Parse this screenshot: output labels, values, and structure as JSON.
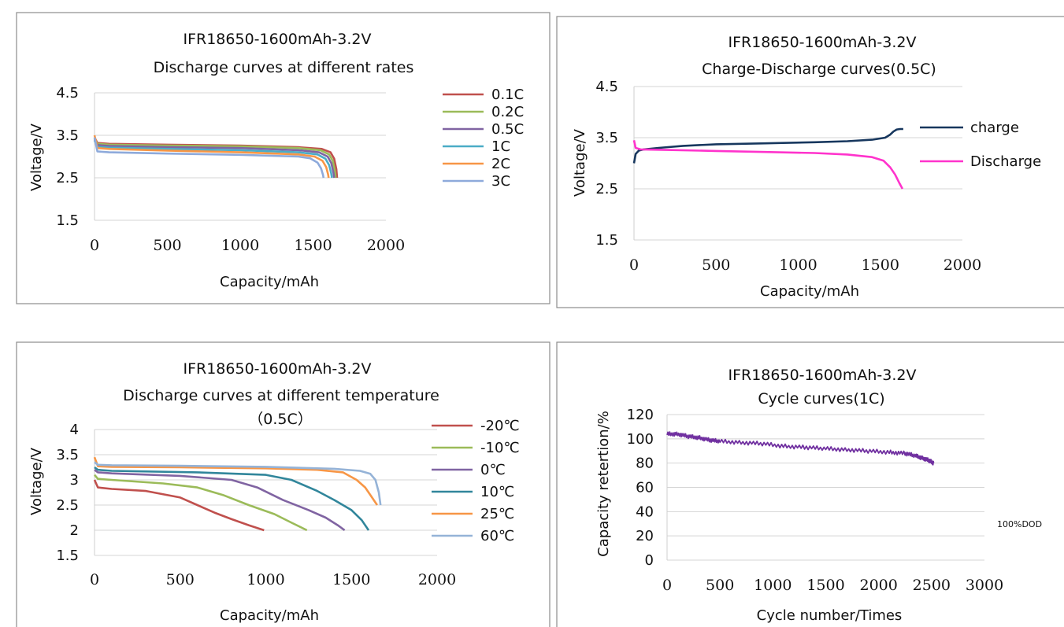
{
  "chart_data": [
    {
      "type": "line",
      "title": "IFR18650-1600mAh-3.2V",
      "subtitle": "Discharge curves at different rates",
      "xlabel": "Capacity/mAh",
      "ylabel": "Voltage/V",
      "xlim": [
        0,
        2000
      ],
      "ylim": [
        1.5,
        4.5
      ],
      "xticks": [
        "0",
        "500",
        "1000",
        "1500",
        "2000"
      ],
      "yticks": [
        "4.5",
        "3.5",
        "2.5",
        "1.5"
      ],
      "grid": true,
      "legend_position": "right",
      "series": [
        {
          "name": "0.1C",
          "color": "#c0504d",
          "x": [
            0,
            20,
            100,
            500,
            1000,
            1400,
            1560,
            1620,
            1645,
            1660,
            1665
          ],
          "y": [
            3.45,
            3.32,
            3.3,
            3.28,
            3.26,
            3.22,
            3.18,
            3.1,
            2.95,
            2.7,
            2.5
          ]
        },
        {
          "name": "0.2C",
          "color": "#9bbb59",
          "x": [
            0,
            20,
            100,
            500,
            1000,
            1400,
            1550,
            1610,
            1635,
            1650,
            1655
          ],
          "y": [
            3.42,
            3.3,
            3.28,
            3.26,
            3.24,
            3.2,
            3.15,
            3.05,
            2.9,
            2.65,
            2.5
          ]
        },
        {
          "name": "0.5C",
          "color": "#8064a2",
          "x": [
            0,
            20,
            100,
            500,
            1000,
            1400,
            1540,
            1600,
            1625,
            1640,
            1645
          ],
          "y": [
            3.4,
            3.27,
            3.25,
            3.22,
            3.2,
            3.15,
            3.1,
            3.0,
            2.85,
            2.62,
            2.5
          ]
        },
        {
          "name": "1C",
          "color": "#4bacc6",
          "x": [
            0,
            20,
            100,
            500,
            1000,
            1400,
            1530,
            1585,
            1610,
            1625,
            1630
          ],
          "y": [
            3.38,
            3.23,
            3.21,
            3.18,
            3.15,
            3.1,
            3.05,
            2.95,
            2.8,
            2.6,
            2.5
          ]
        },
        {
          "name": "2C",
          "color": "#f79646",
          "x": [
            0,
            20,
            100,
            500,
            1000,
            1400,
            1510,
            1565,
            1590,
            1603,
            1607
          ],
          "y": [
            3.5,
            3.2,
            3.18,
            3.14,
            3.1,
            3.05,
            3.0,
            2.9,
            2.75,
            2.58,
            2.5
          ]
        },
        {
          "name": "3C",
          "color": "#8eaadb",
          "x": [
            0,
            20,
            100,
            500,
            1000,
            1400,
            1480,
            1530,
            1555,
            1568,
            1572
          ],
          "y": [
            3.45,
            3.12,
            3.1,
            3.07,
            3.04,
            3.0,
            2.96,
            2.86,
            2.72,
            2.57,
            2.5
          ]
        }
      ]
    },
    {
      "type": "line",
      "title": "IFR18650-1600mAh-3.2V",
      "subtitle": "Charge-Discharge curves(0.5C)",
      "xlabel": "Capacity/mAh",
      "ylabel": "Voltage/V",
      "xlim": [
        0,
        2000
      ],
      "ylim": [
        1.5,
        4.5
      ],
      "xticks": [
        "0",
        "500",
        "1000",
        "1500",
        "2000"
      ],
      "yticks": [
        "4.5",
        "3.5",
        "2.5",
        "1.5"
      ],
      "grid": true,
      "legend_position": "right",
      "series": [
        {
          "name": "charge",
          "color": "#17375e",
          "x": [
            0,
            10,
            30,
            60,
            150,
            300,
            500,
            800,
            1100,
            1300,
            1450,
            1530,
            1560,
            1580,
            1600,
            1620,
            1640
          ],
          "y": [
            3.0,
            3.18,
            3.25,
            3.27,
            3.3,
            3.34,
            3.37,
            3.39,
            3.41,
            3.43,
            3.46,
            3.5,
            3.56,
            3.62,
            3.66,
            3.67,
            3.67
          ]
        },
        {
          "name": "Discharge",
          "color": "#ff33cc",
          "x": [
            0,
            10,
            40,
            200,
            500,
            800,
            1100,
            1300,
            1450,
            1520,
            1560,
            1590,
            1615,
            1635
          ],
          "y": [
            3.45,
            3.3,
            3.27,
            3.26,
            3.24,
            3.22,
            3.2,
            3.17,
            3.12,
            3.05,
            2.92,
            2.78,
            2.62,
            2.5
          ]
        }
      ]
    },
    {
      "type": "line",
      "title": "IFR18650-1600mAh-3.2V",
      "subtitle": "Discharge curves at different temperature",
      "subtitle2": "（0.5C）",
      "xlabel": "Capacity/mAh",
      "ylabel": "Voltage/V",
      "xlim": [
        0,
        2000
      ],
      "ylim": [
        1.5,
        4
      ],
      "xticks": [
        "0",
        "500",
        "1000",
        "1500",
        "2000"
      ],
      "yticks": [
        "4",
        "3.5",
        "3",
        "2.5",
        "2",
        "1.5"
      ],
      "grid": true,
      "legend_position": "right",
      "series": [
        {
          "name": "-20℃",
          "color": "#c0504d",
          "x": [
            0,
            20,
            100,
            300,
            500,
            600,
            700,
            800,
            900,
            990
          ],
          "y": [
            3.0,
            2.85,
            2.82,
            2.78,
            2.65,
            2.5,
            2.35,
            2.22,
            2.1,
            2.0
          ]
        },
        {
          "name": "-10℃",
          "color": "#9bbb59",
          "x": [
            0,
            20,
            100,
            400,
            600,
            750,
            900,
            1050,
            1150,
            1240
          ],
          "y": [
            3.1,
            3.02,
            3.0,
            2.93,
            2.85,
            2.7,
            2.5,
            2.32,
            2.15,
            2.0
          ]
        },
        {
          "name": "0℃",
          "color": "#8064a2",
          "x": [
            0,
            20,
            100,
            500,
            800,
            950,
            1100,
            1250,
            1350,
            1420,
            1460
          ],
          "y": [
            3.2,
            3.15,
            3.13,
            3.08,
            3.0,
            2.85,
            2.6,
            2.4,
            2.25,
            2.1,
            2.0
          ]
        },
        {
          "name": "10℃",
          "color": "#31869b",
          "x": [
            0,
            20,
            100,
            600,
            1000,
            1150,
            1300,
            1400,
            1500,
            1560,
            1600
          ],
          "y": [
            3.25,
            3.2,
            3.18,
            3.15,
            3.1,
            3.0,
            2.78,
            2.6,
            2.4,
            2.2,
            2.0
          ]
        },
        {
          "name": "25℃",
          "color": "#f79646",
          "x": [
            0,
            20,
            100,
            500,
            1000,
            1300,
            1450,
            1530,
            1580,
            1620,
            1650
          ],
          "y": [
            3.45,
            3.27,
            3.26,
            3.25,
            3.23,
            3.2,
            3.15,
            3.0,
            2.85,
            2.65,
            2.5
          ]
        },
        {
          "name": "60℃",
          "color": "#95b3d7",
          "x": [
            0,
            20,
            100,
            500,
            1000,
            1400,
            1550,
            1610,
            1640,
            1660,
            1670
          ],
          "y": [
            3.35,
            3.3,
            3.29,
            3.28,
            3.26,
            3.22,
            3.18,
            3.12,
            3.0,
            2.75,
            2.5
          ]
        }
      ]
    },
    {
      "type": "line",
      "title": "IFR18650-1600mAh-3.2V",
      "subtitle": "Cycle curves(1C)",
      "xlabel": "Cycle number/Times",
      "ylabel": "Capacity retertion/%",
      "xlim": [
        0,
        3000
      ],
      "ylim": [
        0,
        120
      ],
      "xticks": [
        "0",
        "500",
        "1000",
        "1500",
        "2000",
        "2500",
        "3000"
      ],
      "yticks": [
        "120",
        "100",
        "80",
        "60",
        "40",
        "20",
        "0"
      ],
      "grid": true,
      "annotation": "100%DOD",
      "series": [
        {
          "name": "",
          "color": "#7030a0",
          "x": [
            0,
            100,
            200,
            300,
            400,
            500,
            700,
            900,
            1100,
            1300,
            1500,
            1700,
            1900,
            2100,
            2250,
            2350,
            2420,
            2480,
            2520
          ],
          "y": [
            104,
            104,
            102,
            101,
            99,
            98,
            97,
            96,
            94,
            93,
            92,
            91,
            90,
            89,
            88,
            86,
            84,
            82,
            80
          ]
        }
      ]
    }
  ]
}
